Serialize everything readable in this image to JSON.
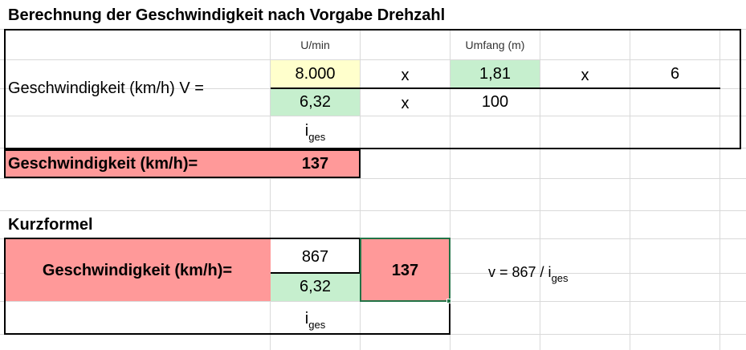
{
  "section1": {
    "title": "Berechnung der Geschwindigkeit nach Vorgabe Drehzahl",
    "unit_rpm": "U/min",
    "unit_circumference": "Umfang (m)",
    "formula_label": "Geschwindigkeit (km/h) V =",
    "numerator": {
      "rpm": "8.000",
      "x1": "x",
      "circumference": "1,81",
      "x2": "x",
      "factor": "6"
    },
    "denominator": {
      "ratio": "6,32",
      "x": "x",
      "divisor": "100"
    },
    "ratio_label_main": "i",
    "ratio_label_sub": "ges",
    "result_label": "Geschwindigkeit (km/h)=",
    "result_value": "137"
  },
  "section2": {
    "title": "Kurzformel",
    "result_label": "Geschwindigkeit (km/h)=",
    "numerator": "867",
    "denominator": "6,32",
    "result_value": "137",
    "formula_main": "v = 867 / i",
    "formula_sub": "ges",
    "ratio_label_main": "i",
    "ratio_label_sub": "ges"
  },
  "colors": {
    "yellow_fill": "#ffffcc",
    "green_fill": "#c6efce",
    "red_fill": "#ff9999",
    "selected_cell_border": "#217346",
    "gridline": "#d4d4d4"
  }
}
